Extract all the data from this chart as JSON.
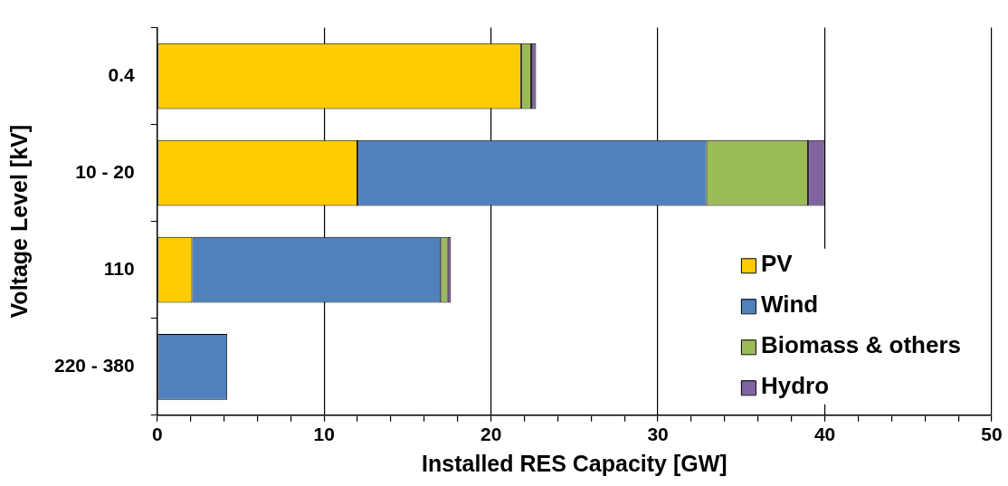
{
  "chart_data": {
    "type": "bar",
    "orientation": "horizontal",
    "stacked": true,
    "xlabel": "Installed RES Capacity [GW]",
    "ylabel": "Voltage Level [kV]",
    "categories": [
      "0.4",
      "10 - 20",
      "110",
      "220 - 380"
    ],
    "series": [
      {
        "name": "PV",
        "color": "#ffcc00",
        "values": [
          21.8,
          12.0,
          2.1,
          null
        ]
      },
      {
        "name": "Wind",
        "color": "#4f81bd",
        "values": [
          null,
          20.9,
          14.9,
          4.2
        ]
      },
      {
        "name": "Biomass & others",
        "color": "#9bbb59",
        "values": [
          0.6,
          6.1,
          0.4,
          null
        ]
      },
      {
        "name": "Hydro",
        "color": "#8064a2",
        "values": [
          0.3,
          1.0,
          0.2,
          null
        ]
      }
    ],
    "xlim": [
      0,
      50
    ],
    "xticks": [
      0,
      {
        "value": 2,
        "label": null
      },
      {
        "value": 4,
        "label": null
      },
      {
        "value": 6,
        "label": null
      },
      {
        "value": 8,
        "label": null
      },
      10,
      {
        "value": 12,
        "label": null
      },
      {
        "value": 14,
        "label": null
      },
      {
        "value": 16,
        "label": null
      },
      {
        "value": 18,
        "label": null
      },
      20,
      {
        "value": 22,
        "label": null
      },
      {
        "value": 24,
        "label": null
      },
      {
        "value": 26,
        "label": null
      },
      {
        "value": 28,
        "label": null
      },
      30,
      {
        "value": 32,
        "label": null
      },
      {
        "value": 34,
        "label": null
      },
      {
        "value": 36,
        "label": null
      },
      {
        "value": 38,
        "label": null
      },
      40,
      {
        "value": 42,
        "label": null
      },
      {
        "value": 44,
        "label": null
      },
      {
        "value": 46,
        "label": null
      },
      {
        "value": 48,
        "label": null
      },
      50
    ],
    "grid": "x",
    "legend": "bottom right"
  }
}
